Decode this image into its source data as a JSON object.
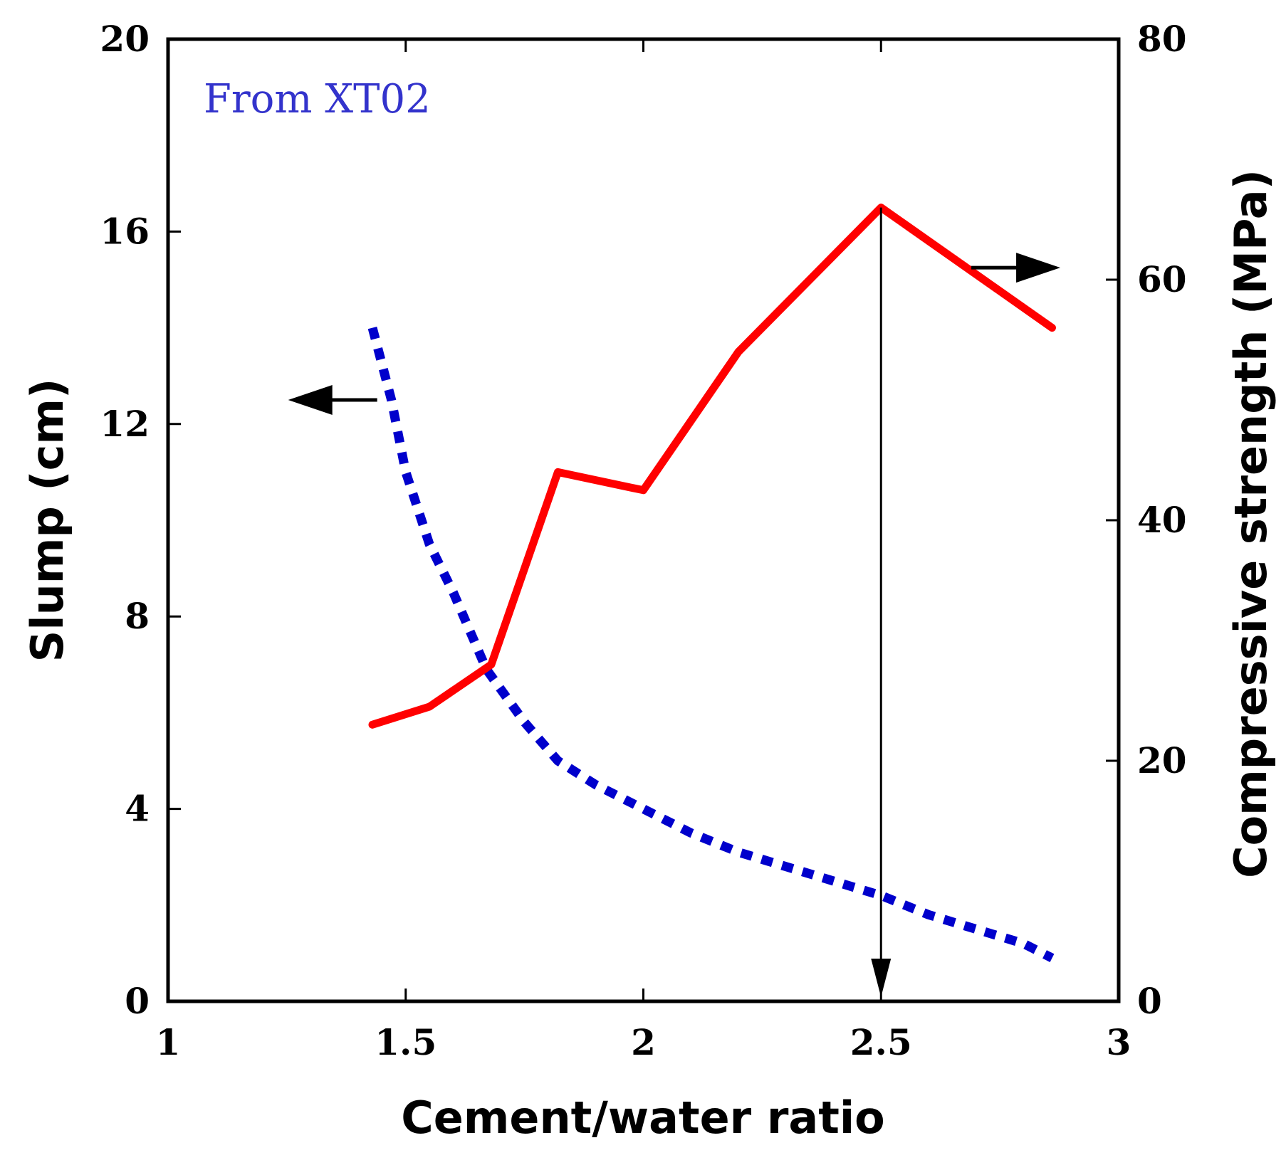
{
  "chart_data": {
    "type": "line",
    "title": "",
    "xlabel": "Cement/water ratio",
    "ylabel": "Slump (cm)",
    "y2label": "Compressive strength (MPa)",
    "xlim": [
      1,
      3
    ],
    "ylim": [
      0,
      20
    ],
    "y2lim": [
      0,
      80
    ],
    "x_ticks": [
      "1",
      "1.5",
      "2",
      "2.5",
      "3"
    ],
    "y_ticks": [
      "0",
      "4",
      "8",
      "12",
      "16",
      "20"
    ],
    "y2_ticks": [
      "0",
      "20",
      "40",
      "60",
      "80"
    ],
    "grid": false,
    "annotation": "From XT02",
    "colors": {
      "slump": "#0000cc",
      "strength": "#ff0000",
      "annotation": "#3333cc"
    },
    "series": [
      {
        "axis": "left",
        "style": "dashed",
        "color": "#0000cc",
        "x": [
          1.43,
          1.47,
          1.5,
          1.55,
          1.6,
          1.67,
          1.75,
          1.82,
          1.9,
          2.0,
          2.1,
          2.2,
          2.3,
          2.4,
          2.5,
          2.6,
          2.7,
          2.8,
          2.86
        ],
        "y": [
          14.0,
          12.5,
          11.0,
          9.5,
          8.5,
          6.9,
          5.8,
          5.0,
          4.5,
          4.0,
          3.5,
          3.1,
          2.8,
          2.5,
          2.2,
          1.8,
          1.5,
          1.2,
          0.9
        ]
      },
      {
        "axis": "right",
        "style": "solid",
        "color": "#ff0000",
        "x": [
          1.43,
          1.55,
          1.68,
          1.82,
          2.0,
          2.2,
          2.5,
          2.86
        ],
        "y": [
          23,
          24.5,
          28,
          44,
          42.5,
          54,
          66,
          56
        ]
      }
    ],
    "markers": [
      {
        "type": "vertical-arrow",
        "x": 2.5,
        "from_y2": 66,
        "to_y2": 0
      },
      {
        "type": "arrow-left",
        "series": "slump",
        "x": 1.44,
        "y": 12.5,
        "points_to": "left axis"
      },
      {
        "type": "arrow-right",
        "series": "strength",
        "x": 2.69,
        "y2": 61,
        "points_to": "right axis"
      }
    ]
  }
}
